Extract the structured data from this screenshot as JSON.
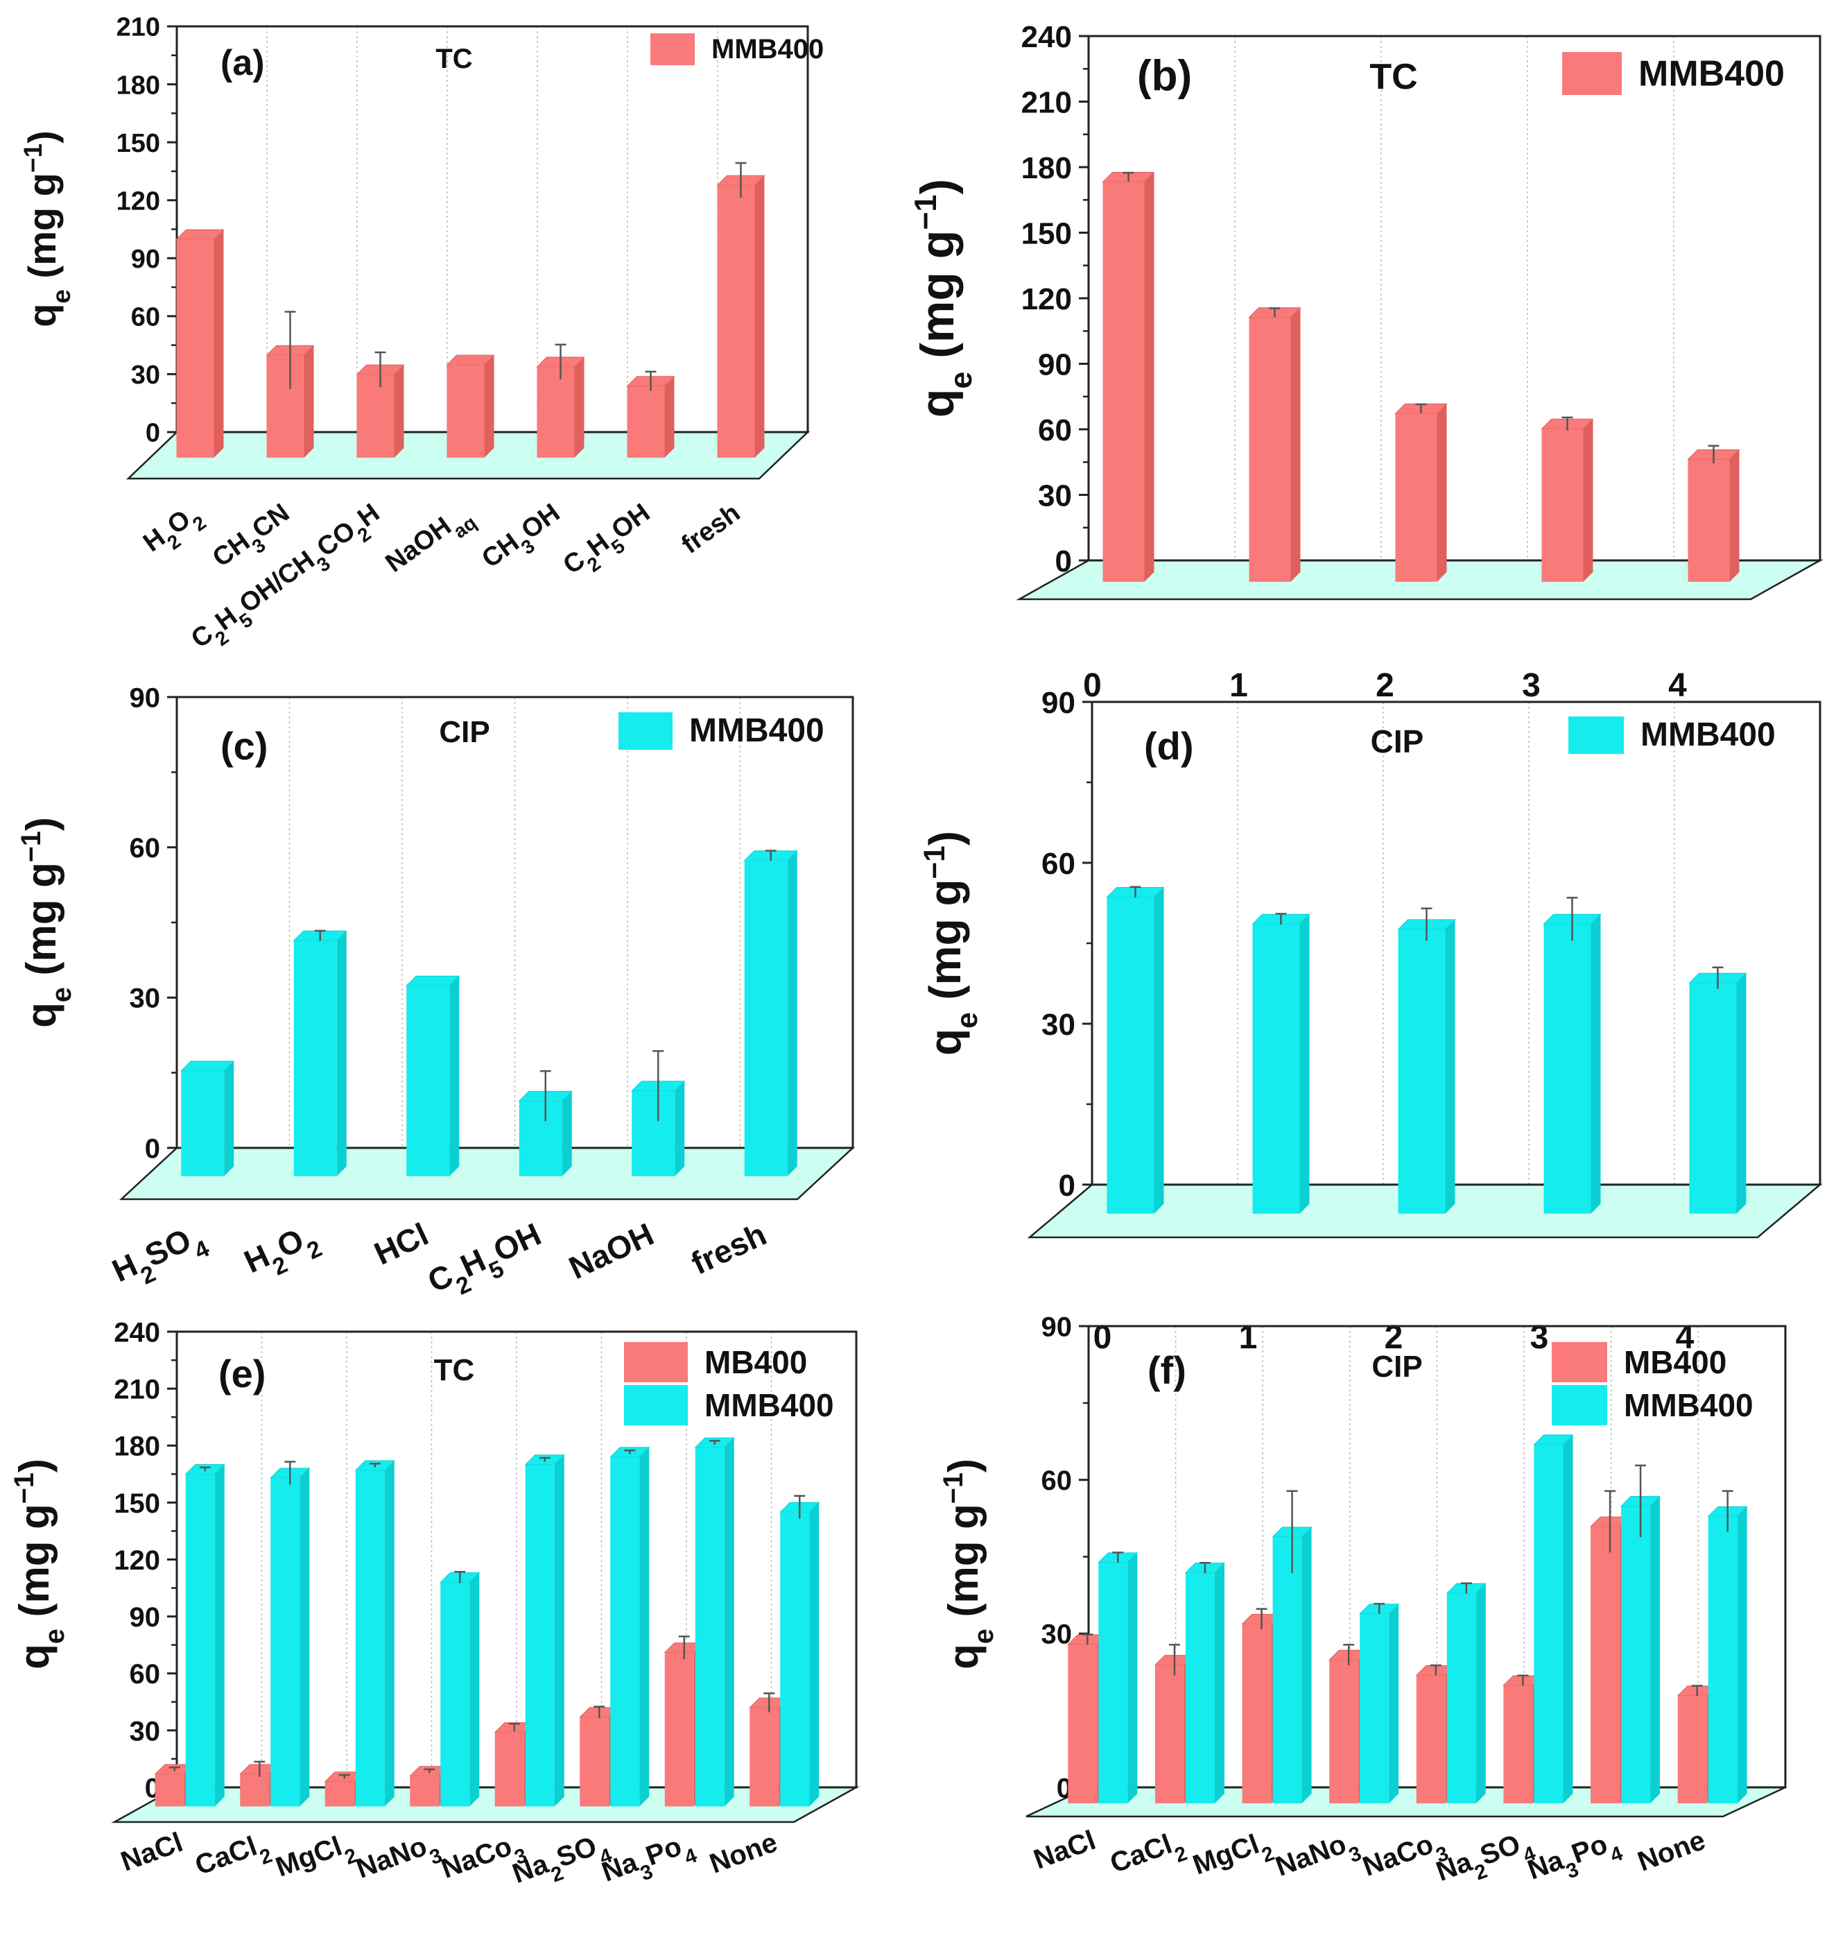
{
  "figure": {
    "axis_title_prefix": "q",
    "axis_title_sub": "e",
    "axis_title_body": " (mg g",
    "axis_title_sup": "−1",
    "axis_title_close": ")"
  },
  "colors": {
    "red": "#f97a78",
    "red_side": "#e0605e",
    "cyan": "#14ecee",
    "cyan_side": "#0ccfd1",
    "floor": "#ccfff1"
  },
  "chart_data": [
    {
      "id": "a",
      "type": "bar",
      "panel_label": "(a)",
      "title": "TC",
      "ylim": [
        0,
        210
      ],
      "yticks": [
        "0",
        "30",
        "60",
        "90",
        "120",
        "150",
        "180",
        "210"
      ],
      "categories": [
        [
          [
            "H",
            "n"
          ],
          [
            "2",
            "s"
          ],
          [
            "O",
            "n"
          ],
          [
            "2",
            "s"
          ]
        ],
        [
          [
            "CH",
            "n"
          ],
          [
            "3",
            "s"
          ],
          [
            "CN",
            "n"
          ]
        ],
        [
          [
            "C",
            "n"
          ],
          [
            "2",
            "s"
          ],
          [
            "H",
            "n"
          ],
          [
            "5",
            "s"
          ],
          [
            "OH/CH",
            "n"
          ],
          [
            "3",
            "s"
          ],
          [
            "CO",
            "n"
          ],
          [
            "2",
            "s"
          ],
          [
            "H",
            "n"
          ]
        ],
        [
          [
            "NaOH",
            "n"
          ],
          [
            "aq",
            "s"
          ]
        ],
        [
          [
            "CH",
            "n"
          ],
          [
            "3",
            "s"
          ],
          [
            "OH",
            "n"
          ]
        ],
        [
          [
            "C",
            "n"
          ],
          [
            "2",
            "s"
          ],
          [
            "H",
            "n"
          ],
          [
            "5",
            "s"
          ],
          [
            "OH",
            "n"
          ]
        ],
        [
          [
            "fresh",
            "n"
          ]
        ]
      ],
      "series": [
        {
          "name": "MMB400",
          "color": "red",
          "values": [
            113,
            53,
            43,
            48,
            47,
            37,
            141
          ],
          "errors": [
            0,
            20,
            9,
            0,
            9,
            5,
            9
          ]
        }
      ]
    },
    {
      "id": "b",
      "type": "bar",
      "panel_label": "(b)",
      "title": "TC",
      "ylim": [
        0,
        240
      ],
      "yticks": [
        "0",
        "30",
        "60",
        "90",
        "120",
        "150",
        "180",
        "210",
        "240"
      ],
      "categories": [
        [
          [
            "0",
            "n"
          ]
        ],
        [
          [
            "1",
            "n"
          ]
        ],
        [
          [
            "2",
            "n"
          ]
        ],
        [
          [
            "3",
            "n"
          ]
        ],
        [
          [
            "4",
            "n"
          ]
        ]
      ],
      "series": [
        {
          "name": "MMB400",
          "color": "red",
          "values": [
            183,
            121,
            77,
            70,
            56
          ],
          "errors": [
            2,
            2,
            2,
            3,
            4
          ]
        }
      ]
    },
    {
      "id": "c",
      "type": "bar",
      "panel_label": "(c)",
      "title": "CIP",
      "ylim": [
        0,
        90
      ],
      "yticks": [
        "0",
        "30",
        "60",
        "90"
      ],
      "categories": [
        [
          [
            "H",
            "n"
          ],
          [
            "2",
            "s"
          ],
          [
            "SO",
            "n"
          ],
          [
            "4",
            "s"
          ]
        ],
        [
          [
            "H",
            "n"
          ],
          [
            "2",
            "s"
          ],
          [
            "O",
            "n"
          ],
          [
            "2",
            "s"
          ]
        ],
        [
          [
            "HCl",
            "n"
          ]
        ],
        [
          [
            "C",
            "n"
          ],
          [
            "2",
            "s"
          ],
          [
            "H",
            "n"
          ],
          [
            "5",
            "s"
          ],
          [
            "OH",
            "n"
          ]
        ],
        [
          [
            "NaOH",
            "n"
          ]
        ],
        [
          [
            "fresh",
            "n"
          ]
        ]
      ],
      "series": [
        {
          "name": "MMB400",
          "color": "cyan",
          "values": [
            21,
            47,
            38,
            15,
            17,
            63
          ],
          "errors": [
            0,
            1,
            0,
            5,
            7,
            1
          ]
        }
      ]
    },
    {
      "id": "d",
      "type": "bar",
      "panel_label": "(d)",
      "title": "CIP",
      "ylim": [
        0,
        90
      ],
      "yticks": [
        "0",
        "30",
        "60",
        "90"
      ],
      "categories": [
        [
          [
            "0",
            "n"
          ]
        ],
        [
          [
            "1",
            "n"
          ]
        ],
        [
          [
            "2",
            "n"
          ]
        ],
        [
          [
            "3",
            "n"
          ]
        ],
        [
          [
            "4",
            "n"
          ]
        ]
      ],
      "series": [
        {
          "name": "MMB400",
          "color": "cyan",
          "values": [
            59,
            54,
            53,
            54,
            43
          ],
          "errors": [
            1,
            1,
            3,
            4,
            2
          ]
        }
      ]
    },
    {
      "id": "e",
      "type": "bar",
      "panel_label": "(e)",
      "title": "TC",
      "ylim": [
        0,
        240
      ],
      "yticks": [
        "0",
        "30",
        "60",
        "90",
        "120",
        "150",
        "180",
        "210",
        "240"
      ],
      "categories": [
        [
          [
            "NaCl",
            "n"
          ]
        ],
        [
          [
            "CaCl",
            "n"
          ],
          [
            "2",
            "s"
          ]
        ],
        [
          [
            "MgCl",
            "n"
          ],
          [
            "2",
            "s"
          ]
        ],
        [
          [
            "NaNo",
            "n"
          ],
          [
            "3",
            "s"
          ]
        ],
        [
          [
            "NaCo",
            "n"
          ],
          [
            "3",
            "s"
          ]
        ],
        [
          [
            "Na",
            "n"
          ],
          [
            "2",
            "s"
          ],
          [
            "SO",
            "n"
          ],
          [
            "4",
            "s"
          ]
        ],
        [
          [
            "Na",
            "n"
          ],
          [
            "3",
            "s"
          ],
          [
            "Po",
            "n"
          ],
          [
            "4",
            "s"
          ]
        ],
        [
          [
            "None",
            "n"
          ]
        ]
      ],
      "series": [
        {
          "name": "MB400",
          "color": "red",
          "values": [
            17,
            17,
            13,
            16,
            39,
            47,
            81,
            52
          ],
          "errors": [
            1,
            4,
            1,
            1,
            2,
            3,
            6,
            5
          ]
        },
        {
          "name": "MMB400",
          "color": "cyan",
          "values": [
            175,
            173,
            177,
            118,
            180,
            184,
            189,
            155
          ],
          "errors": [
            1,
            6,
            1,
            3,
            1,
            1,
            1,
            6
          ]
        }
      ]
    },
    {
      "id": "f",
      "type": "bar",
      "panel_label": "(f)",
      "title": "CIP",
      "ylim": [
        0,
        90
      ],
      "yticks": [
        "0",
        "30",
        "60",
        "90"
      ],
      "categories": [
        [
          [
            "NaCl",
            "n"
          ]
        ],
        [
          [
            "CaCl",
            "n"
          ],
          [
            "2",
            "s"
          ]
        ],
        [
          [
            "MgCl",
            "n"
          ],
          [
            "2",
            "s"
          ]
        ],
        [
          [
            "NaNo",
            "n"
          ],
          [
            "3",
            "s"
          ]
        ],
        [
          [
            "NaCo",
            "n"
          ],
          [
            "3",
            "s"
          ]
        ],
        [
          [
            "Na",
            "n"
          ],
          [
            "2",
            "s"
          ],
          [
            "SO",
            "n"
          ],
          [
            "4",
            "s"
          ]
        ],
        [
          [
            "Na",
            "n"
          ],
          [
            "3",
            "s"
          ],
          [
            "Po",
            "n"
          ],
          [
            "4",
            "s"
          ]
        ],
        [
          [
            "None",
            "n"
          ]
        ]
      ],
      "series": [
        {
          "name": "MB400",
          "color": "red",
          "values": [
            31,
            27,
            35,
            28,
            25,
            23,
            54,
            21
          ],
          "errors": [
            1,
            3,
            2,
            2,
            1,
            1,
            6,
            1
          ]
        },
        {
          "name": "MMB400",
          "color": "cyan",
          "values": [
            47,
            45,
            52,
            37,
            41,
            70,
            58,
            56
          ],
          "errors": [
            1,
            1,
            8,
            1,
            1,
            0,
            7,
            4
          ]
        }
      ]
    }
  ]
}
